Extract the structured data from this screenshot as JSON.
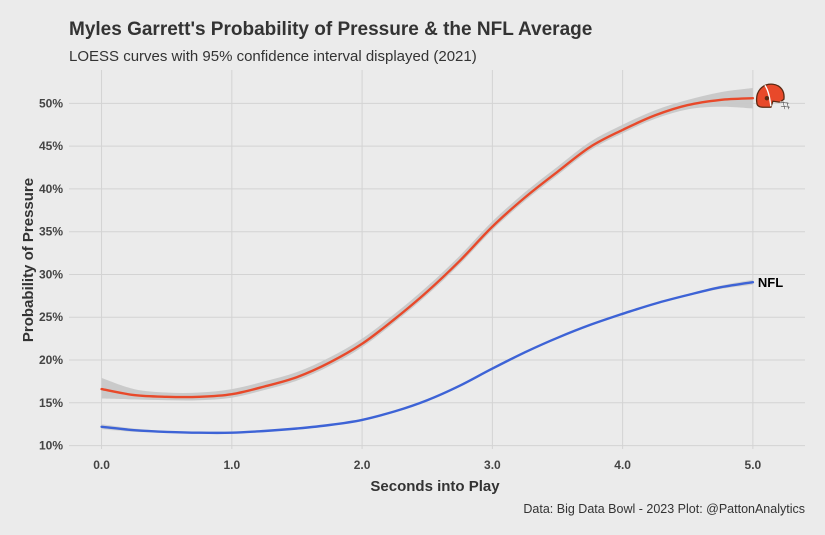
{
  "chart_data": {
    "type": "line",
    "title": "Myles Garrett's Probability of Pressure & the NFL Average",
    "subtitle": "LOESS curves with 95% confidence interval displayed (2021)",
    "xlabel": "Seconds into Play",
    "ylabel": "Probability of Pressure",
    "caption": "Data: Big Data Bowl - 2023 Plot: @PattonAnalytics",
    "xlim": [
      -0.25,
      5.4
    ],
    "ylim": [
      9.6,
      53.9
    ],
    "x_ticks": [
      0,
      1,
      2,
      3,
      4,
      5
    ],
    "x_tick_labels": [
      "0.0",
      "1.0",
      "2.0",
      "3.0",
      "4.0",
      "5.0"
    ],
    "y_ticks": [
      10,
      15,
      20,
      25,
      30,
      35,
      40,
      45,
      50
    ],
    "y_tick_labels": [
      "10%",
      "15%",
      "20%",
      "25%",
      "30%",
      "35%",
      "40%",
      "45%",
      "50%"
    ],
    "grid": true,
    "colors": {
      "garrett": "#e8492a",
      "nfl": "#3d63d6",
      "band": "#c8c8c8",
      "background": "#ebebeb"
    },
    "series": [
      {
        "name": "",
        "label_icon": "browns-helmet-icon",
        "color": "#e8492a",
        "x": [
          0,
          0.25,
          0.5,
          0.75,
          1.0,
          1.25,
          1.5,
          1.75,
          2.0,
          2.25,
          2.5,
          2.75,
          3.0,
          3.25,
          3.5,
          3.75,
          4.0,
          4.25,
          4.5,
          4.75,
          5.0
        ],
        "y": [
          16.6,
          15.9,
          15.7,
          15.7,
          16.0,
          16.9,
          18.0,
          19.7,
          21.9,
          24.8,
          28.0,
          31.6,
          35.6,
          39.0,
          42.0,
          44.9,
          46.9,
          48.6,
          49.8,
          50.4,
          50.6
        ],
        "lower": [
          15.5,
          15.4,
          15.3,
          15.3,
          15.6,
          16.5,
          17.6,
          19.3,
          21.5,
          24.4,
          27.6,
          31.2,
          35.2,
          38.6,
          41.6,
          44.5,
          46.5,
          48.2,
          49.3,
          49.6,
          49.4
        ],
        "upper": [
          17.9,
          16.6,
          16.2,
          16.2,
          16.6,
          17.5,
          18.6,
          20.3,
          22.5,
          25.4,
          28.6,
          32.2,
          36.2,
          39.6,
          42.6,
          45.5,
          47.5,
          49.2,
          50.4,
          51.3,
          51.8
        ]
      },
      {
        "name": "NFL",
        "color": "#3d63d6",
        "x": [
          0,
          0.25,
          0.5,
          0.75,
          1.0,
          1.25,
          1.5,
          1.75,
          2.0,
          2.25,
          2.5,
          2.75,
          3.0,
          3.25,
          3.5,
          3.75,
          4.0,
          4.25,
          4.5,
          4.75,
          5.0
        ],
        "y": [
          12.2,
          11.8,
          11.6,
          11.5,
          11.5,
          11.7,
          12.0,
          12.4,
          13.0,
          14.0,
          15.3,
          17.0,
          19.0,
          20.9,
          22.6,
          24.1,
          25.4,
          26.6,
          27.6,
          28.5,
          29.1
        ],
        "lower": [
          11.9,
          11.6,
          11.5,
          11.4,
          11.4,
          11.6,
          11.9,
          12.3,
          12.9,
          13.9,
          15.2,
          16.9,
          18.9,
          20.8,
          22.5,
          24.0,
          25.3,
          26.5,
          27.5,
          28.3,
          28.8
        ],
        "upper": [
          12.5,
          12.0,
          11.7,
          11.6,
          11.6,
          11.8,
          12.1,
          12.5,
          13.1,
          14.1,
          15.4,
          17.1,
          19.1,
          21.0,
          22.7,
          24.2,
          25.5,
          26.7,
          27.7,
          28.7,
          29.4
        ]
      }
    ]
  }
}
